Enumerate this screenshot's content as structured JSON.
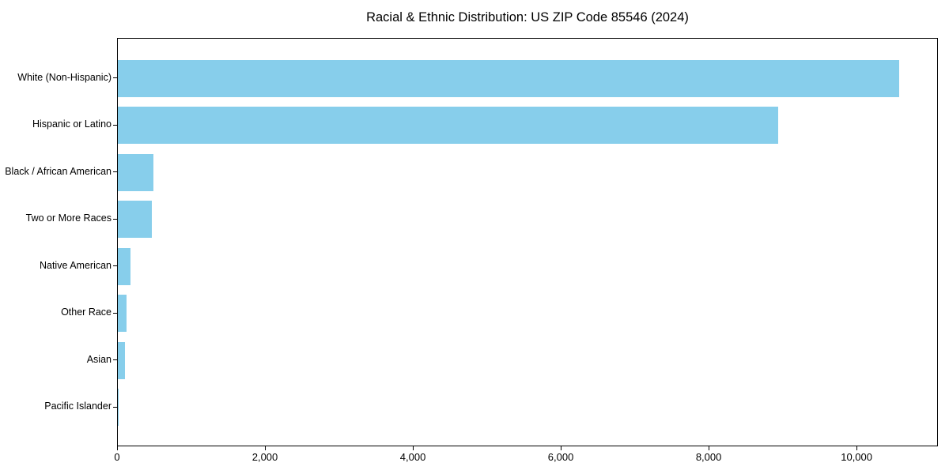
{
  "chart_data": {
    "type": "bar",
    "orientation": "horizontal",
    "title": "Racial & Ethnic Distribution: US ZIP Code 85546 (2024)",
    "categories": [
      "White (Non-Hispanic)",
      "Hispanic or Latino",
      "Black / African American",
      "Two or More Races",
      "Native American",
      "Other Race",
      "Asian",
      "Pacific Islander"
    ],
    "values": [
      10570,
      8930,
      485,
      460,
      175,
      115,
      100,
      15
    ],
    "xlabel": "",
    "ylabel": "",
    "xlim": [
      0,
      11100
    ],
    "xticks": [
      0,
      2000,
      4000,
      6000,
      8000,
      10000
    ],
    "xtick_labels": [
      "0",
      "2,000",
      "4,000",
      "6,000",
      "8,000",
      "10,000"
    ],
    "grid": false,
    "legend": null,
    "colors": {
      "bar": "#87CEEB",
      "axis": "#000000",
      "background": "#FFFFFF",
      "text": "#000000"
    }
  }
}
